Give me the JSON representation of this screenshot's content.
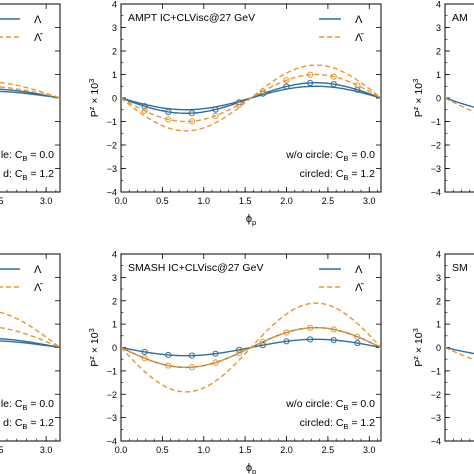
{
  "colors": {
    "lambda": "#2f6f9f",
    "antilambda": "#e8962e",
    "axis": "#000000"
  },
  "chart_data": [
    {
      "type": "line",
      "id": "left-top",
      "title": "",
      "xlabel": "",
      "ylabel": "",
      "xlim": [
        0,
        3.1416
      ],
      "ylim": [
        -4,
        4
      ],
      "xticks": [
        "2.5",
        "3.0"
      ],
      "yticks": [],
      "legend": [
        "Λ",
        "Λ̄"
      ],
      "annotations": [
        "le: C",
        "B",
        " = 0.0",
        "d: C",
        "B",
        " = 1.2"
      ],
      "series": [
        {
          "name": "Λ",
          "style": "solid",
          "amp": 0.3
        },
        {
          "style": "solid",
          "amp": 0.4
        },
        {
          "name": "Λ̄",
          "style": "dashed",
          "amp": 0.5
        },
        {
          "style": "dashed",
          "amp": 0.7
        }
      ]
    },
    {
      "type": "line",
      "id": "center-top",
      "title": "AMPT IC+CLVisc@27 GeV",
      "xlabel": "ϕ",
      "xlabel_sub": "p",
      "ylabel": "P",
      "ylabel_sup": "z",
      "ylabel_suffix": " × 10",
      "ylabel_exp": "3",
      "xlim": [
        0,
        3.1416
      ],
      "ylim": [
        -4,
        4
      ],
      "xticks": [
        "0.0",
        "0.5",
        "1.0",
        "1.5",
        "2.0",
        "2.5",
        "3.0"
      ],
      "yticks": [
        "−4",
        "−3",
        "−2",
        "−1",
        "0",
        "1",
        "2",
        "3",
        "4"
      ],
      "legend": [
        "Λ",
        "Λ̄"
      ],
      "annotations": [
        "w/o circle: C",
        "B",
        " = 0.0",
        "circled: C",
        "B",
        " = 1.2"
      ],
      "series": [
        {
          "name": "Λ",
          "style": "solid",
          "amp": 0.5
        },
        {
          "style": "solid",
          "amp": 0.65,
          "markers": true
        },
        {
          "name": "Λ̄",
          "style": "dashed",
          "amp": 1.0,
          "markers": true
        },
        {
          "style": "dashed",
          "amp": 1.4
        }
      ]
    },
    {
      "type": "line",
      "id": "right-top",
      "title": "AM",
      "xlabel": "",
      "ylabel": "",
      "xlim": [
        0,
        3.1416
      ],
      "ylim": [
        -4,
        4
      ],
      "xticks": [],
      "yticks": [
        "−4",
        "−3",
        "−2",
        "−1",
        "0",
        "1",
        "2",
        "3",
        "4"
      ],
      "ylabel2": "P",
      "ylabel2_sup": "z",
      "ylabel2_suffix": " × 10",
      "ylabel2_exp": "3",
      "series": [
        {
          "style": "solid",
          "amp": 0.6
        },
        {
          "style": "dashed",
          "amp": 0.9
        }
      ]
    },
    {
      "type": "line",
      "id": "left-bottom",
      "title": "",
      "xlabel": "",
      "ylabel": "",
      "xlim": [
        0,
        3.1416
      ],
      "ylim": [
        -4,
        4
      ],
      "xticks": [
        "2.5",
        "3.0"
      ],
      "yticks": [],
      "legend": [
        "Λ",
        "Λ̄"
      ],
      "annotations": [
        "le: C",
        "B",
        " = 0.0",
        "d: C",
        "B",
        " = 1.2"
      ],
      "series": [
        {
          "name": "Λ",
          "style": "solid",
          "amp": 0.3
        },
        {
          "style": "solid",
          "amp": 0.4
        },
        {
          "name": "Λ̄",
          "style": "dashed",
          "amp": 0.9
        },
        {
          "style": "dashed",
          "amp": 1.6
        }
      ]
    },
    {
      "type": "line",
      "id": "center-bottom",
      "title": "SMASH IC+CLVisc@27 GeV",
      "xlabel": "ϕ",
      "xlabel_sub": "p",
      "ylabel": "P",
      "ylabel_sup": "z",
      "ylabel_suffix": " × 10",
      "ylabel_exp": "3",
      "xlim": [
        0,
        3.1416
      ],
      "ylim": [
        -4,
        4
      ],
      "xticks": [
        "0.0",
        "0.5",
        "1.0",
        "1.5",
        "2.0",
        "2.5",
        "3.0"
      ],
      "yticks": [
        "−4",
        "−3",
        "−2",
        "−1",
        "0",
        "1",
        "2",
        "3",
        "4"
      ],
      "legend": [
        "Λ",
        "Λ̄"
      ],
      "annotations": [
        "w/o circle: C",
        "B",
        " = 0.0",
        "circled: C",
        "B",
        " = 1.2"
      ],
      "series": [
        {
          "name": "Λ",
          "style": "solid",
          "amp": 0.35,
          "markers": true
        },
        {
          "style": "solid",
          "amp": 0.85,
          "gray": true
        },
        {
          "name": "Λ̄",
          "style": "dashed",
          "amp": 0.85,
          "markers": true
        },
        {
          "style": "dashed",
          "amp": 1.9
        }
      ]
    },
    {
      "type": "line",
      "id": "right-bottom",
      "title": "SM",
      "xlabel": "",
      "ylabel": "",
      "xlim": [
        0,
        3.1416
      ],
      "ylim": [
        -4,
        4
      ],
      "xticks": [],
      "yticks": [
        "−4",
        "−3",
        "−2",
        "−1",
        "0",
        "1",
        "2",
        "3",
        "4"
      ],
      "ylabel2": "P",
      "ylabel2_sup": "z",
      "ylabel2_suffix": " × 10",
      "ylabel2_exp": "3",
      "series": [
        {
          "style": "solid",
          "amp": 0.4
        },
        {
          "style": "dashed",
          "amp": 0.8
        }
      ]
    }
  ]
}
